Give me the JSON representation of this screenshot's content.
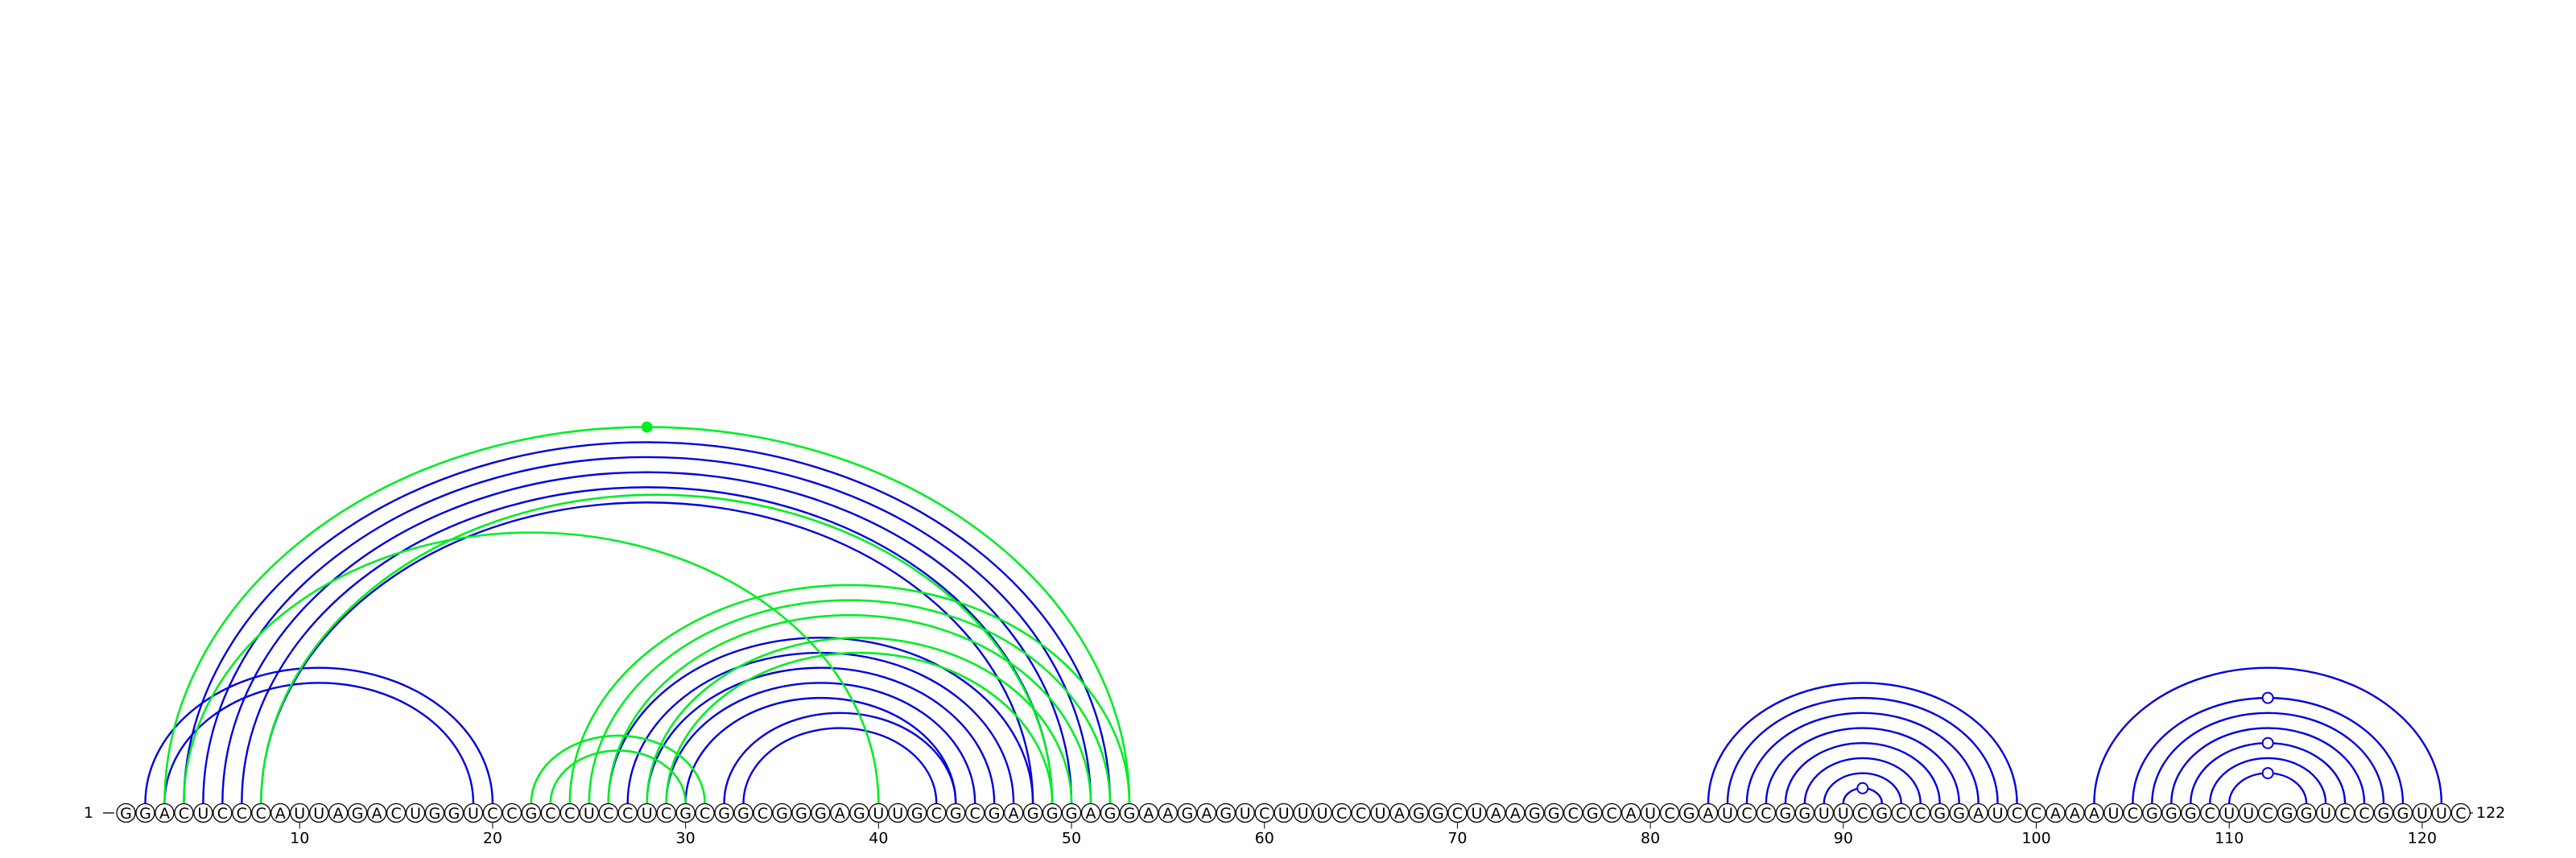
{
  "diagram": {
    "type": "rna-arc-diagram",
    "sequence": "GGACUCCCAUUAGACUGGUCCGCCUCCUCGCGGCGGGAGUUGCGCGAGGGAGGAAGAGUCUUUCCUAGGCUAAGGCGCAUCGAUCCGGUUCGCCGGAUCCAAAUCGGGCUUCGGUCCGGUUC",
    "start_label": "1",
    "end_label": "122",
    "ticks": [
      10,
      20,
      30,
      40,
      50,
      60,
      70,
      80,
      90,
      100,
      110,
      120
    ],
    "colors": {
      "blue": "#0000dd",
      "green": "#00ee22"
    },
    "arcs": [
      {
        "i": 2,
        "j": 20,
        "color": "blue"
      },
      {
        "i": 3,
        "j": 19,
        "color": "blue"
      },
      {
        "i": 4,
        "j": 52,
        "color": "blue"
      },
      {
        "i": 5,
        "j": 51,
        "color": "blue"
      },
      {
        "i": 6,
        "j": 50,
        "color": "blue"
      },
      {
        "i": 7,
        "j": 49,
        "color": "blue"
      },
      {
        "i": 8,
        "j": 48,
        "color": "blue"
      },
      {
        "i": 30,
        "j": 44,
        "color": "blue"
      },
      {
        "i": 29,
        "j": 45,
        "color": "blue"
      },
      {
        "i": 28,
        "j": 46,
        "color": "blue"
      },
      {
        "i": 27,
        "j": 47,
        "color": "blue"
      },
      {
        "i": 26,
        "j": 48,
        "color": "blue"
      },
      {
        "i": 32,
        "j": 44,
        "color": "blue"
      },
      {
        "i": 33,
        "j": 43,
        "color": "blue"
      },
      {
        "i": 83,
        "j": 99,
        "color": "blue"
      },
      {
        "i": 84,
        "j": 98,
        "color": "blue"
      },
      {
        "i": 85,
        "j": 97,
        "color": "blue"
      },
      {
        "i": 86,
        "j": 96,
        "color": "blue"
      },
      {
        "i": 87,
        "j": 95,
        "color": "blue"
      },
      {
        "i": 88,
        "j": 94,
        "color": "blue"
      },
      {
        "i": 89,
        "j": 93,
        "color": "blue"
      },
      {
        "i": 90,
        "j": 92,
        "color": "blue",
        "marker": "open"
      },
      {
        "i": 103,
        "j": 121,
        "color": "blue"
      },
      {
        "i": 105,
        "j": 119,
        "color": "blue",
        "marker": "open"
      },
      {
        "i": 106,
        "j": 118,
        "color": "blue"
      },
      {
        "i": 107,
        "j": 117,
        "color": "blue"
      },
      {
        "i": 108,
        "j": 116,
        "color": "blue",
        "marker": "open"
      },
      {
        "i": 109,
        "j": 115,
        "color": "blue"
      },
      {
        "i": 110,
        "j": 114,
        "color": "blue",
        "marker": "open"
      },
      {
        "i": 3,
        "j": 53,
        "color": "green",
        "marker": "filled"
      },
      {
        "i": 4,
        "j": 40,
        "color": "green"
      },
      {
        "i": 8,
        "j": 49,
        "color": "green"
      },
      {
        "i": 22,
        "j": 31,
        "color": "green"
      },
      {
        "i": 23,
        "j": 30,
        "color": "green"
      },
      {
        "i": 24,
        "j": 53,
        "color": "green"
      },
      {
        "i": 25,
        "j": 52,
        "color": "green"
      },
      {
        "i": 26,
        "j": 51,
        "color": "green"
      },
      {
        "i": 28,
        "j": 50,
        "color": "green"
      },
      {
        "i": 29,
        "j": 49,
        "color": "green"
      }
    ]
  }
}
